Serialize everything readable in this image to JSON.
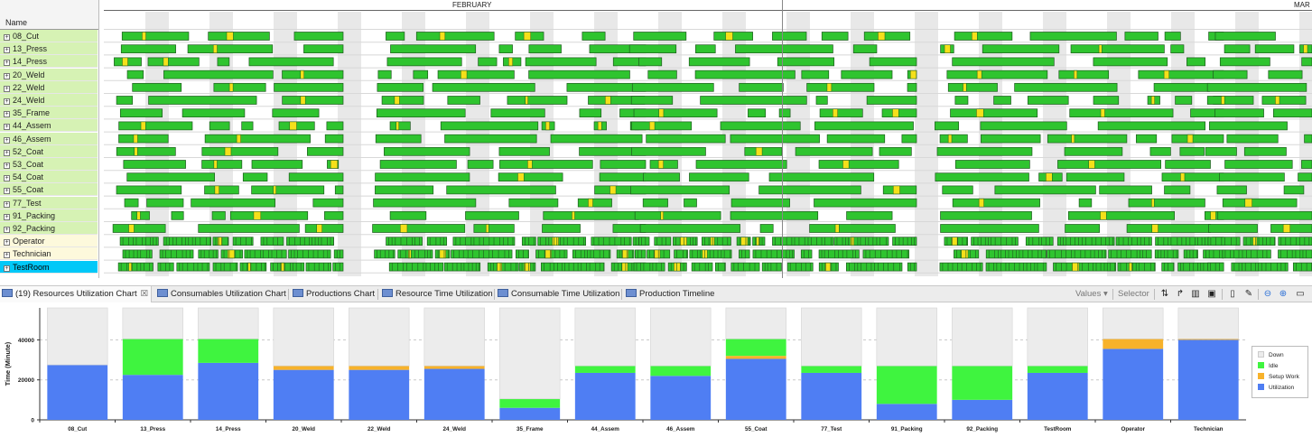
{
  "gantt": {
    "name_header": "Name",
    "months": [
      "FEBRUARY",
      "MAR"
    ],
    "resources": [
      {
        "label": "08_Cut",
        "kind": "machine"
      },
      {
        "label": "13_Press",
        "kind": "machine"
      },
      {
        "label": "14_Press",
        "kind": "machine"
      },
      {
        "label": "20_Weld",
        "kind": "machine"
      },
      {
        "label": "22_Weld",
        "kind": "machine"
      },
      {
        "label": "24_Weld",
        "kind": "machine"
      },
      {
        "label": "35_Frame",
        "kind": "machine"
      },
      {
        "label": "44_Assem",
        "kind": "machine"
      },
      {
        "label": "46_Assem",
        "kind": "machine"
      },
      {
        "label": "52_Coat",
        "kind": "machine"
      },
      {
        "label": "53_Coat",
        "kind": "machine"
      },
      {
        "label": "54_Coat",
        "kind": "machine"
      },
      {
        "label": "55_Coat",
        "kind": "machine"
      },
      {
        "label": "77_Test",
        "kind": "machine"
      },
      {
        "label": "91_Packing",
        "kind": "machine"
      },
      {
        "label": "92_Packing",
        "kind": "machine"
      },
      {
        "label": "Operator",
        "kind": "person"
      },
      {
        "label": "Technician",
        "kind": "person"
      },
      {
        "label": "TestRoom",
        "kind": "room"
      }
    ],
    "expand_glyph": "+",
    "colors": {
      "work": "#2fc42f",
      "setup": "#f5e01a",
      "border": "#1f5a1f",
      "shade": "#e8e8e8"
    }
  },
  "tabs": {
    "items": [
      {
        "label": "(19) Resources Utilization Chart",
        "active": true
      },
      {
        "label": "Consumables Utilization Chart"
      },
      {
        "label": "Productions Chart"
      },
      {
        "label": "Resource Time Utilization"
      },
      {
        "label": "Consumable Time Utilization"
      },
      {
        "label": "Production Timeline"
      }
    ],
    "close_glyph": "☒",
    "values_label": "Values ▾",
    "selector_label": "Selector"
  },
  "chart_data": {
    "type": "bar",
    "stacked": true,
    "ylabel": "Time (Minute)",
    "ylim": [
      0,
      56000
    ],
    "yticks": [
      0,
      20000,
      40000
    ],
    "grid": true,
    "legend_position": "right",
    "categories": [
      "08_Cut",
      "13_Press",
      "14_Press",
      "20_Weld",
      "22_Weld",
      "24_Weld",
      "35_Frame",
      "44_Assem",
      "46_Assem",
      "55_Coat",
      "77_Test",
      "91_Packing",
      "92_Packing",
      "TestRoom",
      "Operator",
      "Technician"
    ],
    "series": [
      {
        "name": "Utilization",
        "color": "#4f7ef3",
        "values": [
          27500,
          22500,
          28500,
          25000,
          25000,
          25500,
          6000,
          23500,
          22000,
          30500,
          23500,
          8000,
          10000,
          23500,
          35500,
          40000
        ]
      },
      {
        "name": "Setup Work",
        "color": "#f7b22b",
        "values": [
          0,
          0,
          0,
          2000,
          2000,
          1500,
          0,
          0,
          0,
          1500,
          0,
          0,
          0,
          0,
          5000,
          500
        ]
      },
      {
        "name": "Idle",
        "color": "#3ff43f",
        "values": [
          0,
          18000,
          12000,
          0,
          0,
          0,
          4500,
          3500,
          5000,
          8500,
          3500,
          19000,
          17000,
          3500,
          0,
          0
        ]
      },
      {
        "name": "Down",
        "color": "#ececec",
        "values": [
          28500,
          15500,
          15500,
          29000,
          29000,
          29000,
          45500,
          29000,
          29000,
          15500,
          29000,
          29000,
          29000,
          29000,
          15500,
          15500
        ]
      }
    ]
  }
}
